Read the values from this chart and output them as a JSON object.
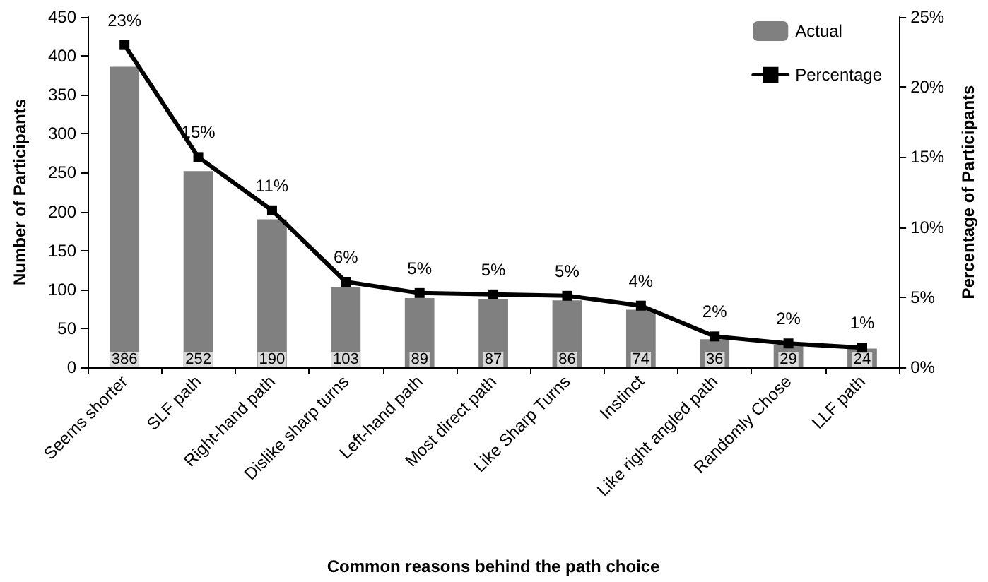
{
  "chart_data": {
    "type": "bar",
    "categories": [
      "Seems shorter",
      "SLF path",
      "Right-hand path",
      "Dislike sharp turns",
      "Left-hand path",
      "Most direct path",
      "Like Sharp Turns",
      "Instinct",
      "Like right angled path",
      "Randomly Chose",
      "LLF path"
    ],
    "series": [
      {
        "name": "Actual",
        "color": "#808080",
        "values": [
          386,
          252,
          190,
          103,
          89,
          87,
          86,
          74,
          36,
          29,
          24
        ],
        "value_labels": [
          "386",
          "252",
          "190",
          "103",
          "89",
          "87",
          "86",
          "74",
          "36",
          "29",
          "24"
        ]
      },
      {
        "name": "Percentage",
        "type": "line",
        "axis": "y2",
        "color": "#000000",
        "values": [
          23,
          15,
          11.2,
          6.1,
          5.3,
          5.2,
          5.1,
          4.4,
          2.2,
          1.7,
          1.4
        ],
        "value_labels": [
          "23%",
          "15%",
          "11%",
          "6%",
          "5%",
          "5%",
          "5%",
          "4%",
          "2%",
          "2%",
          "1%"
        ]
      }
    ],
    "xlabel": "Common reasons behind the path choice",
    "ylabel": "Number of Participants",
    "y2label": "Percentage of Participants",
    "ylim": [
      0,
      450
    ],
    "yticks": [
      0,
      50,
      100,
      150,
      200,
      250,
      300,
      350,
      400,
      450
    ],
    "y2lim": [
      0,
      25
    ],
    "y2ticks": [
      {
        "value": 0,
        "label": "0%"
      },
      {
        "value": 5,
        "label": "5%"
      },
      {
        "value": 10,
        "label": "10%"
      },
      {
        "value": 15,
        "label": "15%"
      },
      {
        "value": 20,
        "label": "20%"
      },
      {
        "value": 25,
        "label": "25%"
      }
    ],
    "marker": "square",
    "line_style": "solid",
    "legend": "top right",
    "grid": false
  }
}
